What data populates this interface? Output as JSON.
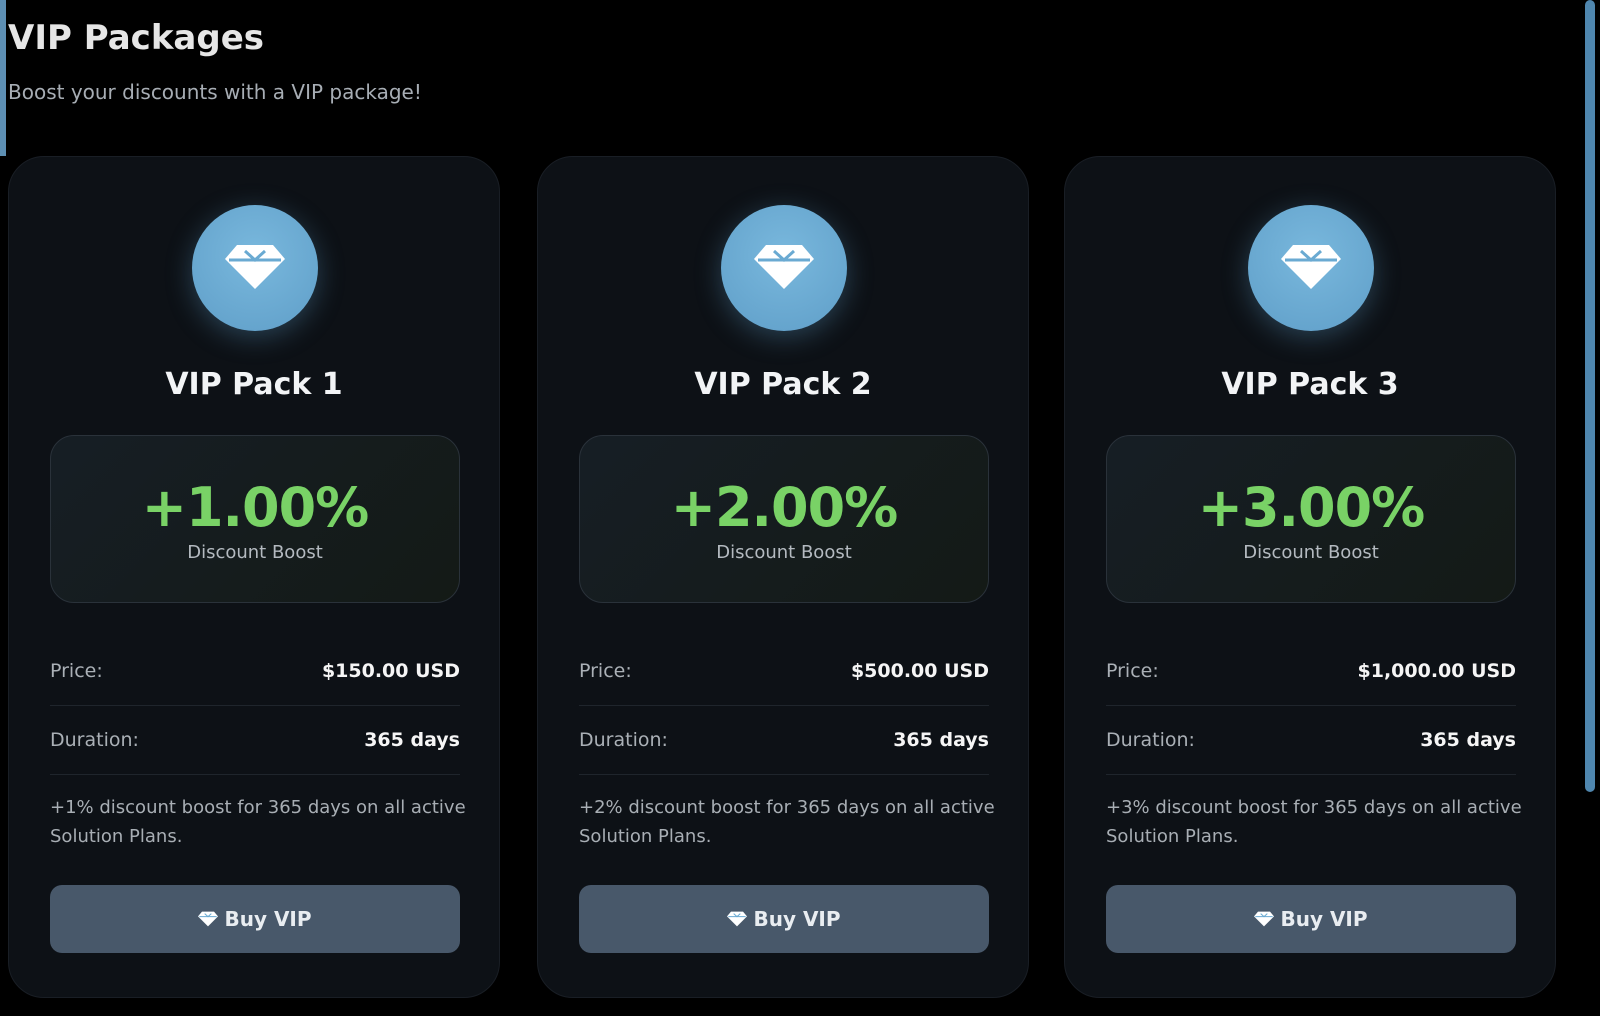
{
  "header": {
    "title": "VIP Packages",
    "subtitle": "Boost your discounts with a VIP package!"
  },
  "packages": [
    {
      "name": "VIP Pack 1",
      "boost": "+1.00%",
      "boost_label": "Discount Boost",
      "price_label": "Price:",
      "price": "$150.00 USD",
      "duration_label": "Duration:",
      "duration": "365 days",
      "description": "+1% discount boost for 365 days on all active Solution Plans.",
      "button": "Buy VIP"
    },
    {
      "name": "VIP Pack 2",
      "boost": "+2.00%",
      "boost_label": "Discount Boost",
      "price_label": "Price:",
      "price": "$500.00 USD",
      "duration_label": "Duration:",
      "duration": "365 days",
      "description": "+2% discount boost for 365 days on all active Solution Plans.",
      "button": "Buy VIP"
    },
    {
      "name": "VIP Pack 3",
      "boost": "+3.00%",
      "boost_label": "Discount Boost",
      "price_label": "Price:",
      "price": "$1,000.00 USD",
      "duration_label": "Duration:",
      "duration": "365 days",
      "description": "+3% discount boost for 365 days on all active Solution Plans.",
      "button": "Buy VIP"
    }
  ]
}
